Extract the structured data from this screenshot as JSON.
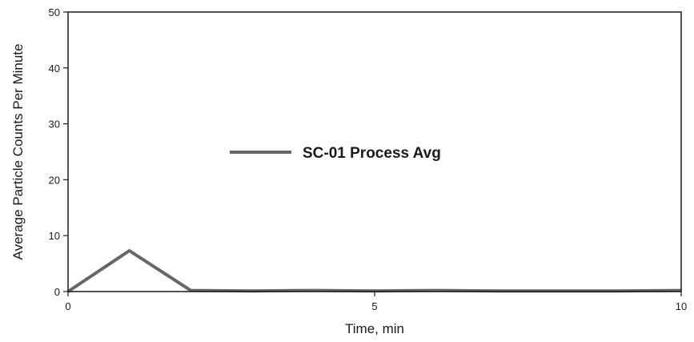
{
  "chart_data": {
    "type": "line",
    "title": "",
    "xlabel": "Time, min",
    "ylabel": "Average Particle Counts Per Minute",
    "xlim": [
      0,
      10
    ],
    "ylim": [
      0,
      50
    ],
    "xticks": [
      0,
      5,
      10
    ],
    "yticks": [
      0,
      10,
      20,
      30,
      40,
      50
    ],
    "grid": false,
    "legend_position": "center",
    "series": [
      {
        "name": "SC-01 Process Avg",
        "color": "#666666",
        "x": [
          0,
          1,
          2,
          3,
          4,
          5,
          6,
          7,
          8,
          9,
          10
        ],
        "y": [
          0,
          7.3,
          0.2,
          0.1,
          0.2,
          0.1,
          0.2,
          0.1,
          0.1,
          0.1,
          0.2
        ]
      }
    ]
  }
}
